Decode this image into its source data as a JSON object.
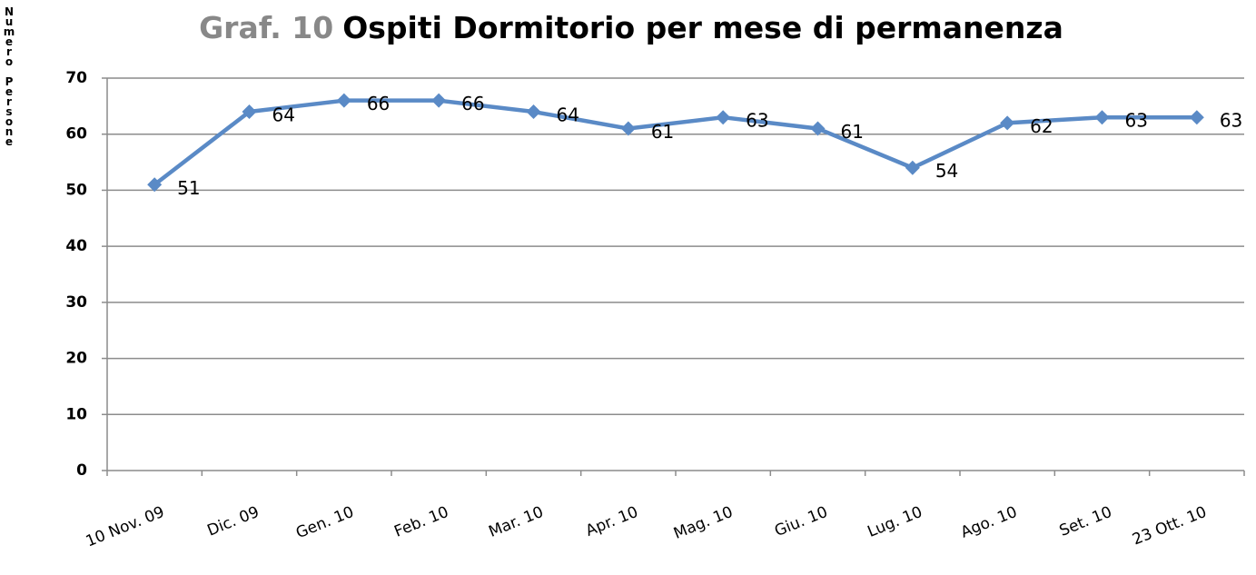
{
  "chart_data": {
    "type": "line",
    "title_label": "Graf. 10",
    "title": "Ospiti Dormitorio per mese di permanenza",
    "y_label": "Numero Persone",
    "categories": [
      "10 Nov. 09",
      "Dic. 09",
      "Gen. 10",
      "Feb. 10",
      "Mar. 10",
      "Apr. 10",
      "Mag. 10",
      "Giu. 10",
      "Lug. 10",
      "Ago. 10",
      "Set. 10",
      "23 Ott. 10"
    ],
    "values": [
      51,
      64,
      66,
      66,
      64,
      61,
      63,
      61,
      54,
      62,
      63,
      63
    ],
    "color": "#5a8ac6",
    "ylim": [
      0,
      70
    ],
    "yticks": [
      0,
      10,
      20,
      30,
      40,
      50,
      60,
      70
    ],
    "grid": true
  }
}
